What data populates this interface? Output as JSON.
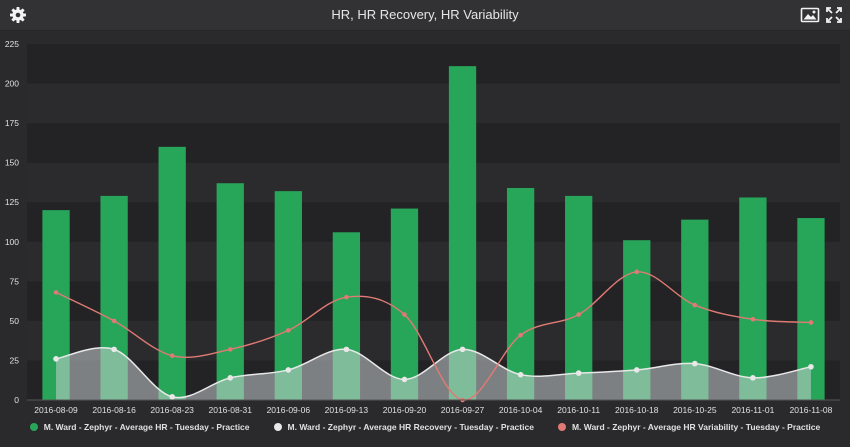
{
  "header": {
    "title": "HR, HR Recovery, HR Variability",
    "icons": {
      "settings": "gear-icon",
      "image": "image-icon",
      "fullscreen": "fullscreen-icon"
    }
  },
  "colors": {
    "bar": "#27a65a",
    "recovery": "#e8e8e8",
    "recovery_fill": "#c8cdd0",
    "variability": "#e07a74",
    "text": "#e0e0e0"
  },
  "chart_data": {
    "type": "bar",
    "categories": [
      "2016-08-09",
      "2016-08-16",
      "2016-08-23",
      "2016-08-31",
      "2016-09-06",
      "2016-09-13",
      "2016-09-20",
      "2016-09-27",
      "2016-10-04",
      "2016-10-11",
      "2016-10-18",
      "2016-10-25",
      "2016-11-01",
      "2016-11-08"
    ],
    "ylim": [
      0,
      225
    ],
    "yticks": [
      0,
      25,
      50,
      75,
      100,
      125,
      150,
      175,
      200,
      225
    ],
    "series": [
      {
        "name": "M. Ward - Zephyr - Average HR - Tuesday - Practice",
        "type": "bar",
        "values": [
          120,
          129,
          160,
          137,
          132,
          106,
          121,
          211,
          134,
          129,
          101,
          114,
          128,
          115
        ]
      },
      {
        "name": "M. Ward - Zephyr - Average HR Recovery - Tuesday - Practice",
        "type": "area",
        "values": [
          26,
          32,
          2,
          14,
          19,
          32,
          13,
          32,
          16,
          17,
          19,
          23,
          14,
          21
        ]
      },
      {
        "name": "M. Ward - Zephyr - Average HR Variability - Tuesday - Practice",
        "type": "line",
        "values": [
          68,
          50,
          28,
          32,
          44,
          65,
          54,
          0,
          41,
          54,
          81,
          60,
          51,
          49
        ]
      }
    ]
  }
}
